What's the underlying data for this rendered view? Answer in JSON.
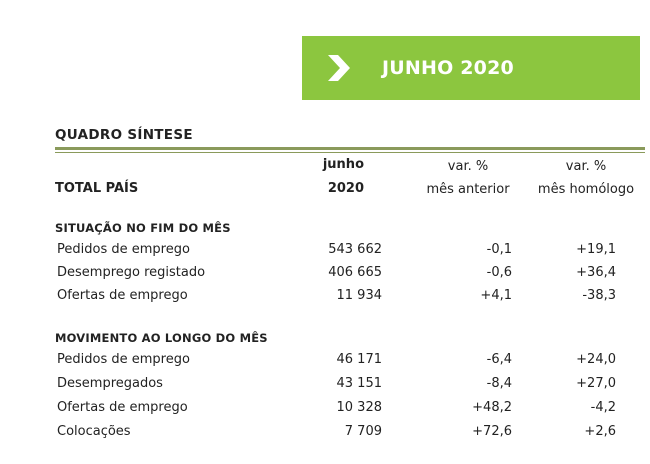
{
  "banner": {
    "title": "JUNHO 2020",
    "icon": "chevron-right-icon",
    "color": "#8cc63f"
  },
  "section_title": "QUADRO  SÍNTESE",
  "header": {
    "total_label": "TOTAL PAÍS",
    "col1_line1": "junho",
    "col1_line2": "2020",
    "col2_line1": "var. %",
    "col2_line2": "mês anterior",
    "col3_line1": "var. %",
    "col3_line2": "mês homólogo"
  },
  "groups": [
    {
      "title": "SITUAÇÃO NO FIM DO MÊS",
      "rows": [
        {
          "label": "Pedidos de emprego",
          "value": "543 662",
          "var_month": "-0,1",
          "var_year": "+19,1"
        },
        {
          "label": "Desemprego registado",
          "value": "406 665",
          "var_month": "-0,6",
          "var_year": "+36,4"
        },
        {
          "label": "Ofertas de emprego",
          "value": "11 934",
          "var_month": "+4,1",
          "var_year": "-38,3"
        }
      ]
    },
    {
      "title": "MOVIMENTO AO LONGO DO MÊS",
      "rows": [
        {
          "label": "Pedidos de emprego",
          "value": "46 171",
          "var_month": "-6,4",
          "var_year": "+24,0"
        },
        {
          "label": "Desempregados",
          "value": "43 151",
          "var_month": "-8,4",
          "var_year": "+27,0"
        },
        {
          "label": "Ofertas de emprego",
          "value": "10 328",
          "var_month": "+48,2",
          "var_year": "-4,2"
        },
        {
          "label": "Colocações",
          "value": "7 709",
          "var_month": "+72,6",
          "var_year": "+2,6"
        }
      ]
    }
  ]
}
